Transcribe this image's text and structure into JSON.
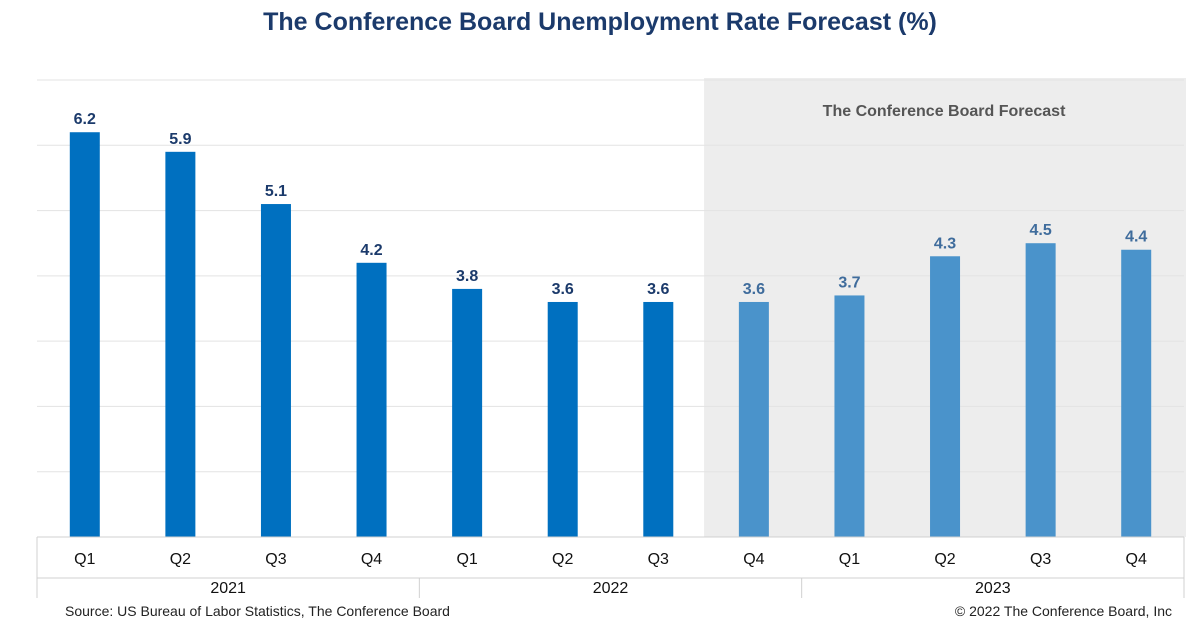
{
  "page": {
    "title": "The Conference Board Unemployment Rate Forecast (%)",
    "source": "Source: US Bureau of Labor Statistics, The Conference Board",
    "copyright": "© 2022 The Conference Board, Inc"
  },
  "chart_data": {
    "type": "bar",
    "title": "The Conference Board Unemployment Rate Forecast (%)",
    "xlabel": "",
    "ylabel": "",
    "ylim": [
      0,
      7
    ],
    "grid": true,
    "categories": [
      "Q1",
      "Q2",
      "Q3",
      "Q4",
      "Q1",
      "Q2",
      "Q3",
      "Q4",
      "Q1",
      "Q2",
      "Q3",
      "Q4"
    ],
    "groups": [
      {
        "label": "2021",
        "count": 4
      },
      {
        "label": "2022",
        "count": 4
      },
      {
        "label": "2023",
        "count": 4
      }
    ],
    "values": [
      6.2,
      5.9,
      5.1,
      4.2,
      3.8,
      3.6,
      3.6,
      3.6,
      3.7,
      4.3,
      4.5,
      4.4
    ],
    "forecast_start_index": 7,
    "forecast_label": "The Conference Board Forecast",
    "colors": {
      "actual": "#0070c0",
      "forecast": "#4a93cb",
      "actual_label": "#1b3a6b",
      "forecast_label": "#3f6c9c",
      "forecast_shade": "#ededed",
      "forecast_text": "#555555",
      "grid": "#e3e3e3",
      "axis_line": "#d0d0d0"
    }
  }
}
